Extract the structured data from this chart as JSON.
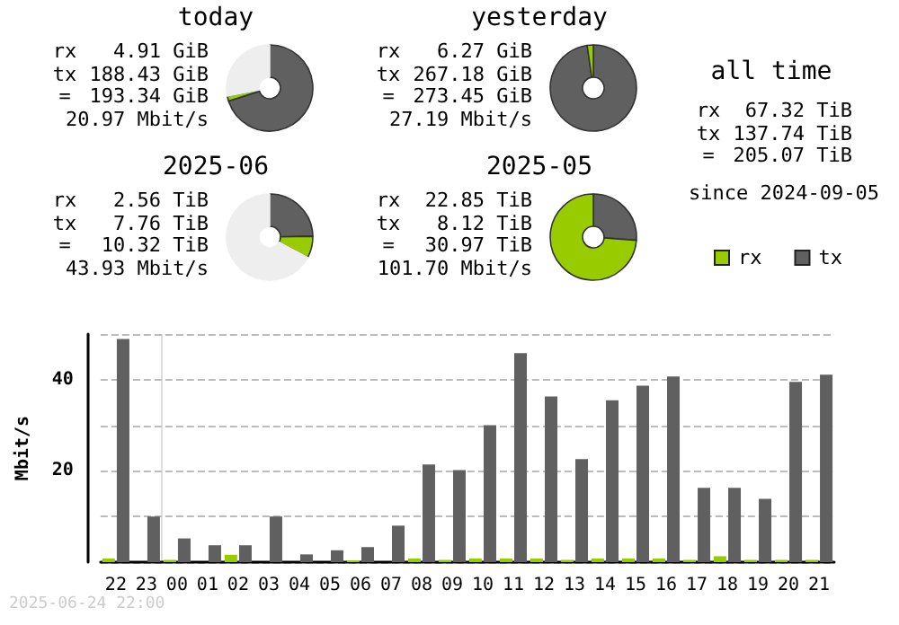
{
  "chart_data": [
    {
      "type": "donut",
      "title": "today",
      "categories": [
        null,
        null,
        null
      ],
      "values": [
        70.1,
        1.9,
        28.0
      ],
      "colors": [
        "#606060",
        "#99cc00",
        "#eeeeee"
      ],
      "annotations": [
        "rx",
        "4.91 GiB",
        "tx",
        "188.43 GiB",
        "=",
        "193.34 GiB",
        "20.97 Mbit/s"
      ]
    },
    {
      "type": "donut",
      "title": "yesterday",
      "categories": [
        null,
        null
      ],
      "values": [
        97.7,
        2.3
      ],
      "colors": [
        "#606060",
        "#99cc00"
      ],
      "annotations": [
        "rx",
        "6.27 GiB",
        "tx",
        "267.18 GiB",
        "=",
        "273.45 GiB",
        "27.19 Mbit/s"
      ]
    },
    {
      "type": "donut",
      "title": "2025-06",
      "categories": [
        null,
        null,
        null
      ],
      "values": [
        24.7,
        8.1,
        67.2
      ],
      "colors": [
        "#606060",
        "#99cc00",
        "#eeeeee"
      ],
      "annotations": [
        "rx",
        "2.56 TiB",
        "tx",
        "7.76 TiB",
        "=",
        "10.32 TiB",
        "43.93 Mbit/s"
      ]
    },
    {
      "type": "donut",
      "title": "2025-05",
      "categories": [
        null,
        null
      ],
      "values": [
        26.2,
        73.8
      ],
      "colors": [
        "#606060",
        "#99cc00"
      ],
      "annotations": [
        "rx",
        "22.85 TiB",
        "tx",
        "8.12 TiB",
        "=",
        "30.97 TiB",
        "101.70 Mbit/s"
      ]
    },
    {
      "type": "other",
      "title": "all time",
      "annotations": [
        "rx",
        "67.32 TiB",
        "tx",
        "137.74 TiB",
        "=",
        "205.07 TiB",
        "since 2024-09-05"
      ]
    },
    {
      "type": "bar",
      "ylabel": "Mbit/s",
      "categories": [
        "22",
        "23",
        "00",
        "01",
        "02",
        "03",
        "04",
        "05",
        "06",
        "07",
        "08",
        "09",
        "10",
        "11",
        "12",
        "13",
        "14",
        "15",
        "16",
        "17",
        "18",
        "19",
        "20",
        "21"
      ],
      "series": [
        {
          "name": "rx",
          "color": "#99cc00",
          "values": [
            0.8,
            0,
            0.5,
            0,
            1.6,
            0,
            0,
            0,
            0.4,
            0,
            0.8,
            0.5,
            0.8,
            0.8,
            0.8,
            0.5,
            0.8,
            0.8,
            0.8,
            0.5,
            1.3,
            0.5,
            0.5,
            0.5
          ]
        },
        {
          "name": "tx",
          "color": "#606060",
          "values": [
            48.9,
            10.0,
            5.2,
            3.7,
            3.7,
            10.0,
            1.7,
            2.6,
            3.3,
            8.0,
            21.4,
            20.2,
            30.0,
            45.8,
            36.3,
            22.6,
            35.5,
            38.7,
            40.7,
            16.3,
            16.3,
            13.9,
            39.5,
            41.1
          ]
        }
      ],
      "ylim": [
        0,
        50
      ],
      "yticks": [
        {
          "value": 0,
          "label": null
        },
        {
          "value": 10,
          "label": null
        },
        20,
        {
          "value": 30,
          "label": null
        },
        40,
        {
          "value": 50,
          "label": null
        }
      ],
      "grid": "y",
      "legend": "top right",
      "ref_lines": [
        {
          "axis": "x",
          "value": "00",
          "color": "#dddddd"
        }
      ],
      "annotations": [
        "2025-06-24 22:00"
      ]
    }
  ]
}
